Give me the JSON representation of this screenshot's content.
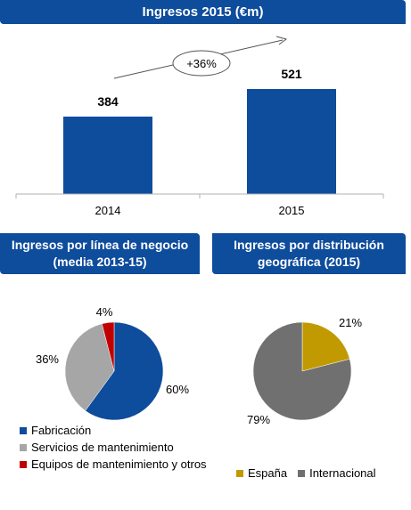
{
  "colors": {
    "banner": "#0e4c9c",
    "bar": "#0e4c9c",
    "fabricacion": "#0e4c9c",
    "servicios": "#a6a6a6",
    "equipos": "#c00000",
    "espana": "#c09a00",
    "internacional": "#707070"
  },
  "banner_top": "Ingresos 2015 (€m)",
  "banner_left": {
    "line1": "Ingresos por línea de negocio",
    "line2": "(media 2013-15)"
  },
  "banner_right": {
    "line1": "Ingresos por distribución",
    "line2": "geográfica (2015)"
  },
  "growth_label": "+36%",
  "chart_data": [
    {
      "type": "bar",
      "title": "Ingresos 2015 (€m)",
      "categories": [
        "2014",
        "2015"
      ],
      "values": [
        384,
        521
      ],
      "value_labels": [
        "384",
        "521"
      ],
      "annotation": "+36%",
      "ylim": [
        0,
        600
      ],
      "grid": false
    },
    {
      "type": "pie",
      "title": "Ingresos por línea de negocio (media 2013-15)",
      "slices": [
        {
          "label": "Fabricación",
          "value": 60,
          "value_label": "60%",
          "color": "#0e4c9c"
        },
        {
          "label": "Servicios de mantenimiento",
          "value": 36,
          "value_label": "36%",
          "color": "#a6a6a6"
        },
        {
          "label": "Equipos de mantenimiento y otros",
          "value": 4,
          "value_label": "4%",
          "color": "#c00000"
        }
      ],
      "legend": "bottom"
    },
    {
      "type": "pie",
      "title": "Ingresos por distribución geográfica (2015)",
      "slices": [
        {
          "label": "España",
          "value": 21,
          "value_label": "21%",
          "color": "#c09a00"
        },
        {
          "label": "Internacional",
          "value": 79,
          "value_label": "79%",
          "color": "#707070"
        }
      ],
      "legend": "bottom"
    }
  ]
}
